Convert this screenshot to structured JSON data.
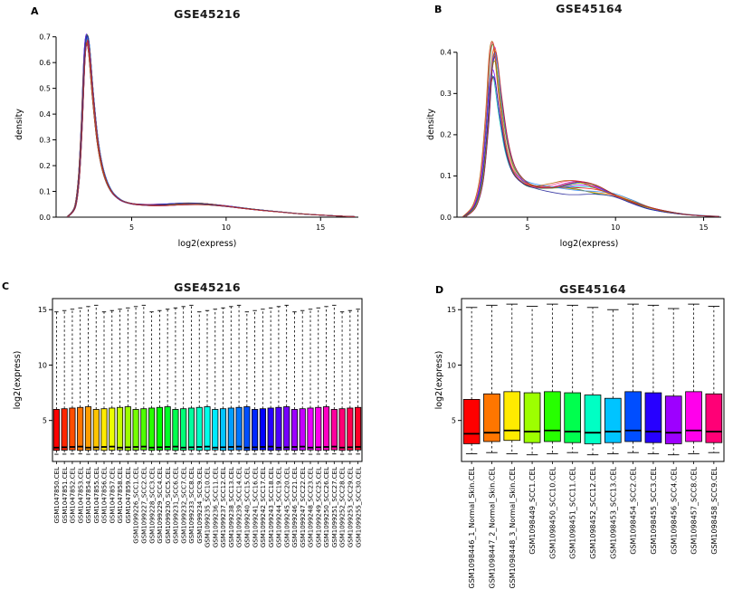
{
  "figure": {
    "background": "#ffffff",
    "panels": [
      {
        "letter": "A"
      },
      {
        "letter": "B"
      },
      {
        "letter": "C"
      },
      {
        "letter": "D"
      }
    ]
  },
  "chart_data": [
    {
      "panel": "A",
      "type": "line",
      "subtype": "density-overlay",
      "title": "GSE45216",
      "xlabel": "log2(express)",
      "ylabel": "density",
      "xlim": [
        1,
        17
      ],
      "ylim": [
        0,
        0.72
      ],
      "xticks": [
        5,
        10,
        15
      ],
      "yticks": [
        0.0,
        0.1,
        0.2,
        0.3,
        0.4,
        0.5,
        0.6,
        0.7
      ],
      "n_curves": 39,
      "colors": [
        "#ff0000",
        "#0000ff",
        "#008b00",
        "#00b7b7",
        "#b700b7",
        "#ff8c00",
        "#6a00ff",
        "#ff3377",
        "#2288ff",
        "#77b300",
        "#b35900",
        "#222299",
        "#bb2222"
      ],
      "variation": {
        "amp": 0.018,
        "scale_min": 0.975,
        "scale_range": 0.025,
        "xshift": 0.03,
        "hump": 0.003
      },
      "curve": [
        [
          1.6,
          0.001
        ],
        [
          2.0,
          0.04
        ],
        [
          2.2,
          0.15
        ],
        [
          2.35,
          0.35
        ],
        [
          2.5,
          0.62
        ],
        [
          2.62,
          0.7
        ],
        [
          2.75,
          0.66
        ],
        [
          2.95,
          0.48
        ],
        [
          3.2,
          0.3
        ],
        [
          3.5,
          0.18
        ],
        [
          3.9,
          0.105
        ],
        [
          4.4,
          0.068
        ],
        [
          5.0,
          0.053
        ],
        [
          5.8,
          0.048
        ],
        [
          6.8,
          0.049
        ],
        [
          7.8,
          0.053
        ],
        [
          8.8,
          0.052
        ],
        [
          9.8,
          0.045
        ],
        [
          10.8,
          0.036
        ],
        [
          11.8,
          0.028
        ],
        [
          12.8,
          0.021
        ],
        [
          13.8,
          0.014
        ],
        [
          14.8,
          0.009
        ],
        [
          15.8,
          0.005
        ],
        [
          16.8,
          0.002
        ]
      ]
    },
    {
      "panel": "B",
      "type": "line",
      "subtype": "density-overlay",
      "title": "GSE45164",
      "xlabel": "log2(express)",
      "ylabel": "density",
      "xlim": [
        1,
        16
      ],
      "ylim": [
        0,
        0.45
      ],
      "xticks": [
        5,
        10,
        15
      ],
      "yticks": [
        0.0,
        0.1,
        0.2,
        0.3,
        0.4
      ],
      "n_curves": 13,
      "colors": [
        "#ff0000",
        "#0000ff",
        "#008b00",
        "#00b7b7",
        "#b700b7",
        "#ff8c00",
        "#6a00ff",
        "#ff3377",
        "#2288ff",
        "#77b300",
        "#b35900",
        "#222299",
        "#bb2222"
      ],
      "variation": {
        "amp": 0.07,
        "scale_min": 0.86,
        "scale_range": 0.14,
        "xshift": 0.09,
        "hump": 0.012
      },
      "curve": [
        [
          1.4,
          0.001
        ],
        [
          2.0,
          0.03
        ],
        [
          2.4,
          0.1
        ],
        [
          2.7,
          0.24
        ],
        [
          2.9,
          0.38
        ],
        [
          3.05,
          0.42
        ],
        [
          3.2,
          0.4
        ],
        [
          3.45,
          0.3
        ],
        [
          3.8,
          0.19
        ],
        [
          4.2,
          0.125
        ],
        [
          4.8,
          0.092
        ],
        [
          5.5,
          0.08
        ],
        [
          6.3,
          0.078
        ],
        [
          7.2,
          0.081
        ],
        [
          7.9,
          0.082
        ],
        [
          8.8,
          0.075
        ],
        [
          9.8,
          0.06
        ],
        [
          10.8,
          0.042
        ],
        [
          11.8,
          0.026
        ],
        [
          12.8,
          0.015
        ],
        [
          13.8,
          0.008
        ],
        [
          14.8,
          0.004
        ],
        [
          15.8,
          0.002
        ]
      ]
    },
    {
      "panel": "C",
      "type": "boxplot",
      "title": "GSE45216",
      "xlabel": "",
      "ylabel": "log2(express)",
      "ylim": [
        1.3,
        16
      ],
      "yticks": [
        5,
        10,
        15
      ],
      "palette": "rainbow",
      "samples": {
        "labels": [
          "GSM1047850.CEL",
          "GSM1047851.CEL",
          "GSM1047852.CEL",
          "GSM1047853.CEL",
          "GSM1047854.CEL",
          "GSM1047855.CEL",
          "GSM1047856.CEL",
          "GSM1047857.CEL",
          "GSM1047858.CEL",
          "GSM1047859.CEL",
          "GSM1099226_SCC1.CEL",
          "GSM1099227_SCC2.CEL",
          "GSM1099228_SCC3.CEL",
          "GSM1099229_SCC4.CEL",
          "GSM1099230_SCC5.CEL",
          "GSM1099231_SCC6.CEL",
          "GSM1099232_SCC7.CEL",
          "GSM1099233_SCC8.CEL",
          "GSM1099234_SCC9.CEL",
          "GSM1099235_SCC10.CEL",
          "GSM1099236_SCC11.CEL",
          "GSM1099237_SCC12.CEL",
          "GSM1099238_SCC13.CEL",
          "GSM1099239_SCC14.CEL",
          "GSM1099240_SCC15.CEL",
          "GSM1099241_SCC16.CEL",
          "GSM1099242_SCC17.CEL",
          "GSM1099243_SCC18.CEL",
          "GSM1099244_SCC19.CEL",
          "GSM1099245_SCC20.CEL",
          "GSM1099246_SCC21.CEL",
          "GSM1099247_SCC22.CEL",
          "GSM1099248_SCC23.CEL",
          "GSM1099249_SCC25.CEL",
          "GSM1099250_SCC26.CEL",
          "GSM1099251_SCC27.CEL",
          "GSM1099252_SCC28.CEL",
          "GSM1099253_SCC29.CEL",
          "GSM1099255_SCC30.CEL"
        ],
        "lo": [
          1.95,
          1.96,
          1.97,
          1.98,
          1.95,
          1.96,
          1.97,
          1.98,
          1.95,
          1.96,
          1.97,
          1.98,
          1.95,
          1.96,
          1.97,
          1.98,
          1.95,
          1.96,
          1.97,
          1.98,
          1.95,
          1.96,
          1.97,
          1.98,
          1.95,
          1.96,
          1.97,
          1.98,
          1.95,
          1.96,
          1.97,
          1.98,
          1.95,
          1.96,
          1.97,
          1.98,
          1.95,
          1.96,
          1.97
        ],
        "q1": [
          2.3,
          2.32,
          2.34,
          2.3,
          2.32,
          2.34,
          2.3,
          2.32,
          2.34,
          2.3,
          2.32,
          2.34,
          2.3,
          2.32,
          2.34,
          2.3,
          2.32,
          2.34,
          2.3,
          2.32,
          2.34,
          2.3,
          2.32,
          2.34,
          2.3,
          2.32,
          2.34,
          2.3,
          2.32,
          2.34,
          2.3,
          2.32,
          2.34,
          2.3,
          2.32,
          2.34,
          2.3,
          2.32,
          2.34
        ],
        "med": [
          2.55,
          2.58,
          2.61,
          2.64,
          2.55,
          2.58,
          2.61,
          2.64,
          2.55,
          2.58,
          2.61,
          2.64,
          2.55,
          2.58,
          2.61,
          2.64,
          2.55,
          2.58,
          2.61,
          2.64,
          2.55,
          2.58,
          2.61,
          2.64,
          2.55,
          2.58,
          2.61,
          2.64,
          2.55,
          2.58,
          2.61,
          2.64,
          2.55,
          2.58,
          2.61,
          2.64,
          2.55,
          2.58,
          2.61
        ],
        "q3": [
          6.0,
          6.06,
          6.12,
          6.18,
          6.24,
          6.0,
          6.06,
          6.12,
          6.18,
          6.24,
          6.0,
          6.06,
          6.12,
          6.18,
          6.24,
          6.0,
          6.06,
          6.12,
          6.18,
          6.24,
          6.0,
          6.06,
          6.12,
          6.18,
          6.24,
          6.0,
          6.06,
          6.12,
          6.18,
          6.24,
          6.0,
          6.06,
          6.12,
          6.18,
          6.24,
          6.0,
          6.06,
          6.12,
          6.18
        ],
        "hi": [
          14.8,
          14.92,
          15.04,
          15.16,
          15.28,
          15.4,
          14.8,
          14.92,
          15.04,
          15.16,
          15.28,
          15.4,
          14.8,
          14.92,
          15.04,
          15.16,
          15.28,
          15.4,
          14.8,
          14.92,
          15.04,
          15.16,
          15.28,
          15.4,
          14.8,
          14.92,
          15.04,
          15.16,
          15.28,
          15.4,
          14.8,
          14.92,
          15.04,
          15.16,
          15.28,
          15.4,
          14.8,
          14.92,
          15.04
        ]
      }
    },
    {
      "panel": "D",
      "type": "boxplot",
      "title": "GSE45164",
      "xlabel": "",
      "ylabel": "log2(express)",
      "ylim": [
        1.3,
        16
      ],
      "yticks": [
        5,
        10,
        15
      ],
      "palette": "rainbow",
      "palette_hex": [
        "#FF0000",
        "#FF7600",
        "#FFEB00",
        "#9DFF00",
        "#27FF00",
        "#00FF4E",
        "#00FFC4",
        "#00C4FF",
        "#004EFF",
        "#2700FF",
        "#9D00FF",
        "#FF00EB",
        "#FF0076"
      ],
      "samples": {
        "labels": [
          "GSM1098446_1_Normal_Skin.CEL",
          "GSM1098447_2_Normal_Skin.CEL",
          "GSM1098448_3_Normal_Skin.CEL",
          "GSM1098449_SCC1.CEL",
          "GSM1098450_SCC10.CEL",
          "GSM1098451_SCC11.CEL",
          "GSM1098452_SCC12.CEL",
          "GSM1098453_SCC13.CEL",
          "GSM1098454_SCC2.CEL",
          "GSM1098455_SCC3.CEL",
          "GSM1098456_SCC4.CEL",
          "GSM1098457_SCC8.CEL",
          "GSM1098458_SCC9.CEL"
        ],
        "lo": [
          2.0,
          2.1,
          2.0,
          1.9,
          2.0,
          2.1,
          1.9,
          2.0,
          2.1,
          2.0,
          1.9,
          2.0,
          2.1
        ],
        "q1": [
          2.9,
          3.1,
          3.2,
          3.0,
          3.1,
          3.0,
          2.9,
          3.0,
          3.1,
          3.0,
          2.9,
          3.1,
          3.0
        ],
        "med": [
          3.8,
          3.9,
          4.1,
          4.0,
          4.1,
          4.0,
          3.9,
          4.0,
          4.1,
          4.0,
          3.9,
          4.1,
          4.0
        ],
        "q3": [
          6.9,
          7.4,
          7.6,
          7.5,
          7.6,
          7.5,
          7.3,
          7.0,
          7.6,
          7.5,
          7.2,
          7.6,
          7.4
        ],
        "hi": [
          15.2,
          15.4,
          15.5,
          15.3,
          15.5,
          15.4,
          15.2,
          15.0,
          15.5,
          15.4,
          15.1,
          15.5,
          15.3
        ]
      }
    }
  ]
}
